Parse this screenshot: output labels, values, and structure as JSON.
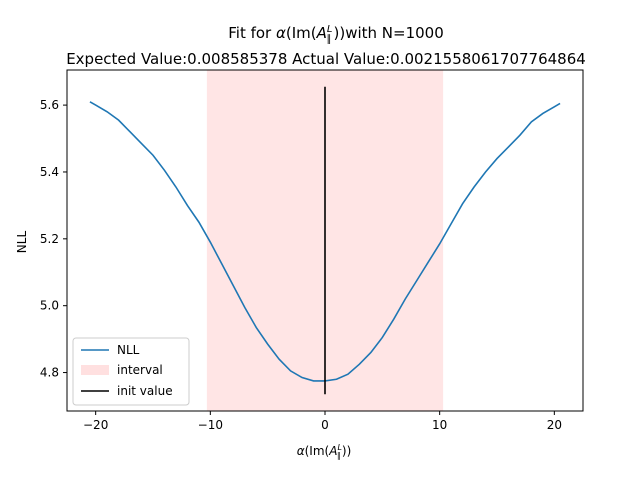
{
  "chart_data": {
    "type": "line",
    "title_line1_prefix": "Fit for ",
    "title_line1_symbol": "α(Im(A",
    "title_line1_suffix": "))with N=1000",
    "title_line2": "Expected Value:0.008585378 Actual Value:0.002155806170776 4864",
    "title_line2_text": "Expected Value:0.008585378 Actual Value:0.0021558061707764864",
    "xlabel": "α(Im(A",
    "xlabel_suffix": "))",
    "ylabel": "NLL",
    "xlim": [
      -22.5,
      22.5
    ],
    "ylim": [
      4.685,
      5.705
    ],
    "xticks": [
      -20,
      -10,
      0,
      10,
      20
    ],
    "xtick_labels": [
      "−20",
      "−10",
      "0",
      "10",
      "20"
    ],
    "yticks": [
      4.8,
      5.0,
      5.2,
      5.4,
      5.6
    ],
    "ytick_labels": [
      "4.8",
      "5.0",
      "5.2",
      "5.4",
      "5.6"
    ],
    "series": [
      {
        "name": "NLL",
        "color": "#1f77b4",
        "x": [
          -20.5,
          -20.0,
          -19.0,
          -18.0,
          -17.0,
          -16.0,
          -15.0,
          -14.0,
          -13.0,
          -12.0,
          -11.0,
          -10.0,
          -9.0,
          -8.0,
          -7.0,
          -6.0,
          -5.0,
          -4.0,
          -3.0,
          -2.0,
          -1.0,
          0.0,
          1.0,
          2.0,
          3.0,
          4.0,
          5.0,
          6.0,
          7.0,
          8.0,
          9.0,
          10.0,
          11.0,
          12.0,
          13.0,
          14.0,
          15.0,
          16.0,
          17.0,
          18.0,
          19.0,
          20.0,
          20.5
        ],
        "y": [
          5.61,
          5.6,
          5.58,
          5.555,
          5.52,
          5.485,
          5.45,
          5.405,
          5.355,
          5.3,
          5.25,
          5.19,
          5.125,
          5.06,
          4.995,
          4.935,
          4.885,
          4.84,
          4.805,
          4.785,
          4.775,
          4.775,
          4.78,
          4.795,
          4.825,
          4.86,
          4.905,
          4.96,
          5.02,
          5.075,
          5.13,
          5.185,
          5.245,
          5.305,
          5.355,
          5.4,
          5.44,
          5.475,
          5.51,
          5.55,
          5.575,
          5.595,
          5.605
        ]
      }
    ],
    "interval": {
      "name": "interval",
      "color": "#ff9999",
      "x_range": [
        -10.3,
        10.3
      ]
    },
    "init_value": {
      "name": "init value",
      "color": "#000000",
      "x": 0,
      "y_range": [
        4.735,
        5.655
      ]
    },
    "legend": {
      "placement": "lower-left",
      "entries": [
        "NLL",
        "interval",
        "init value"
      ]
    }
  }
}
